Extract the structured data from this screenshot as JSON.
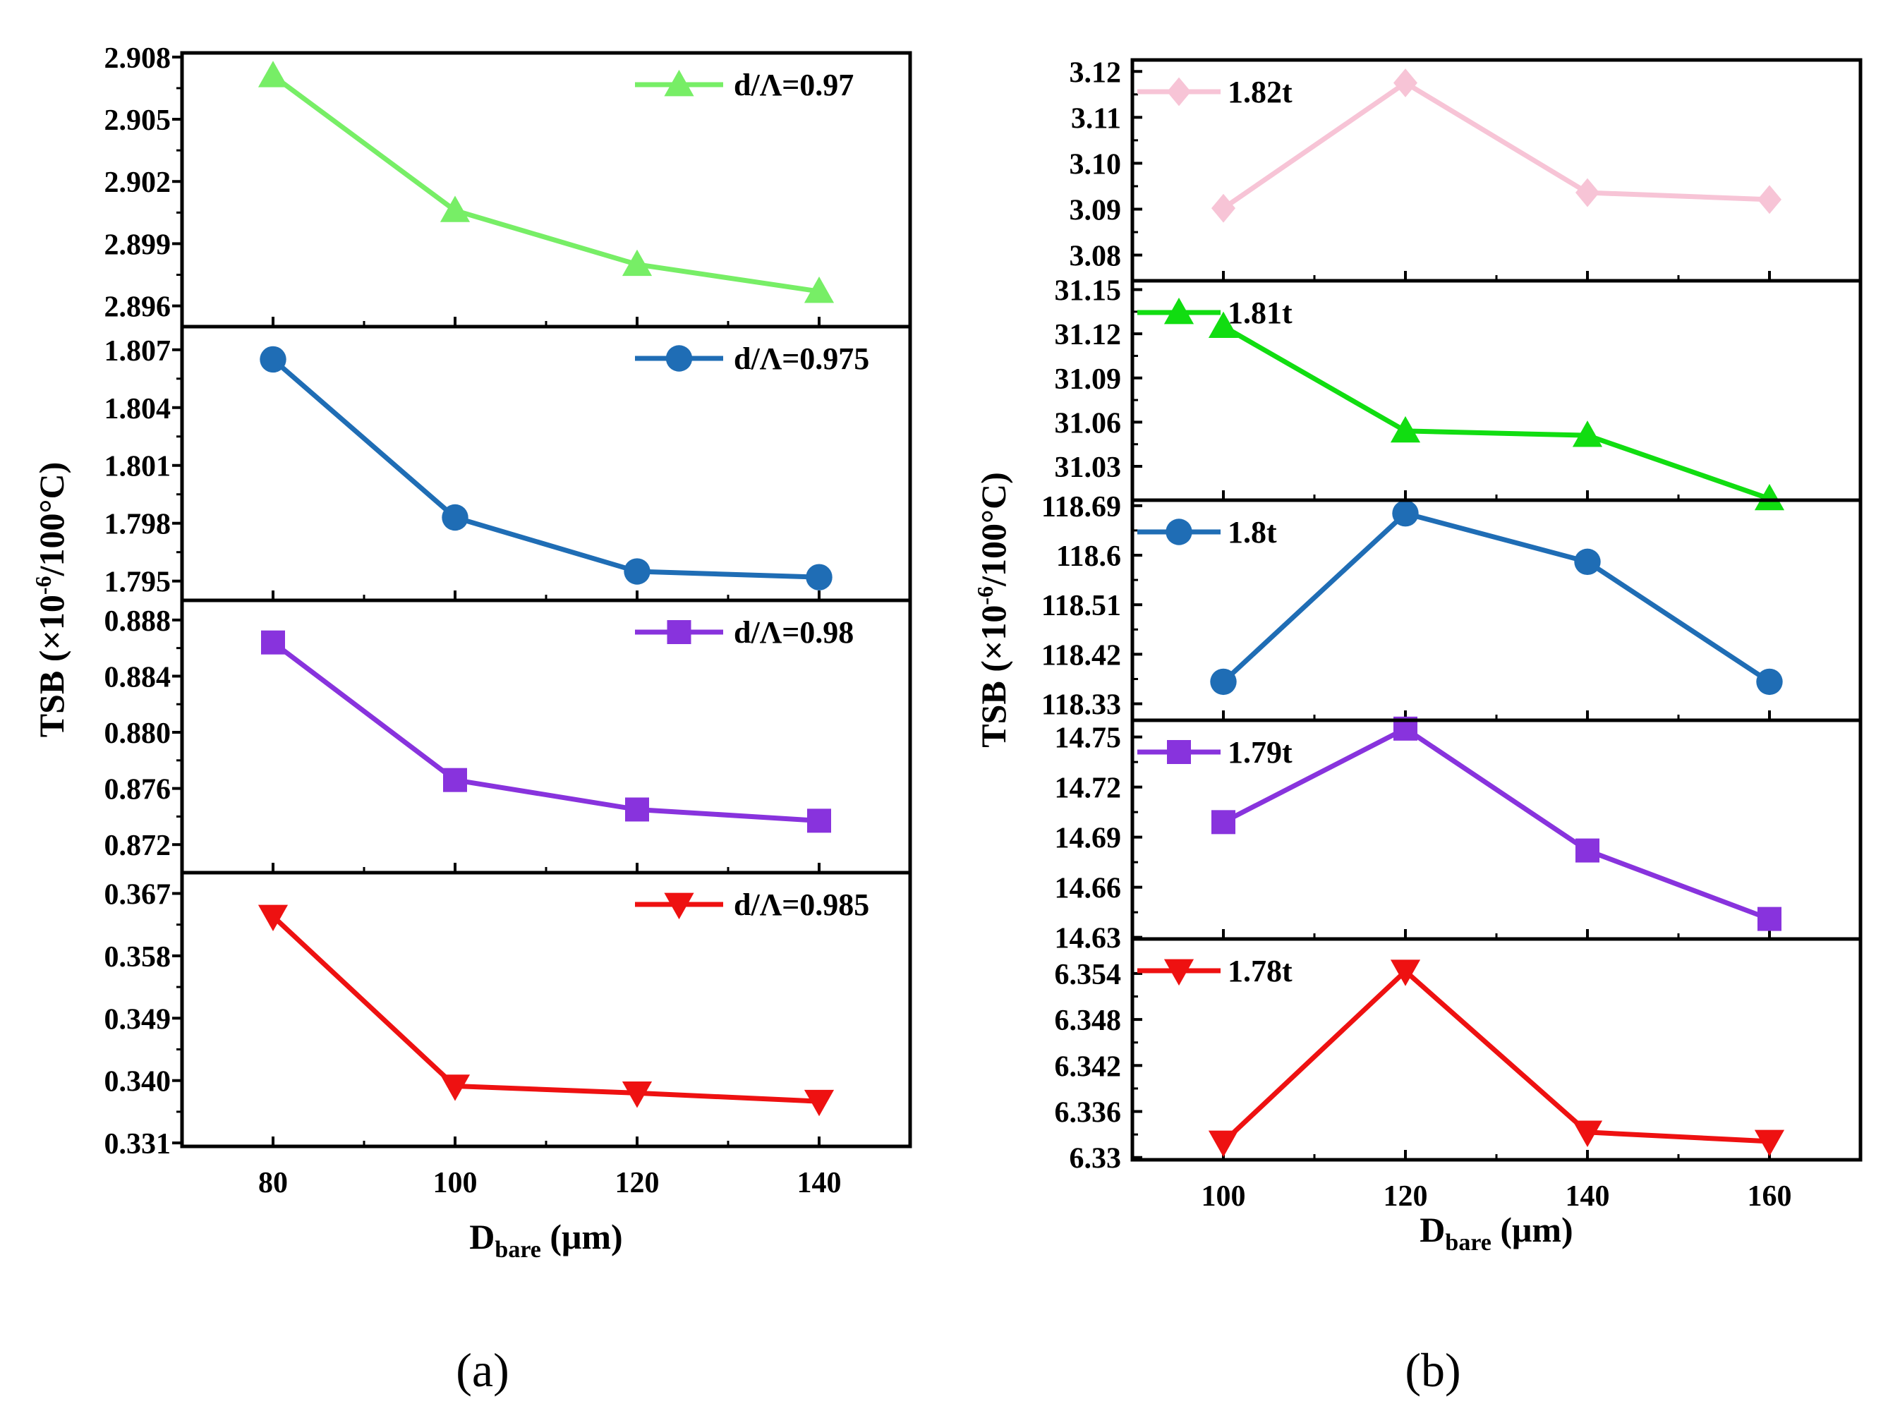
{
  "chart_data": [
    {
      "id": "a",
      "type": "line",
      "caption": "(a)",
      "xlabel": "D",
      "xlabel_sub": "bare",
      "xlabel_unit": " (μm)",
      "ylabel": "TSB (×10",
      "ylabel_sup": "-6",
      "ylabel_rest": "/100°C)",
      "x_ticks": [
        "80",
        "100",
        "120",
        "140"
      ],
      "x_values": [
        80,
        100,
        120,
        140
      ],
      "xlim": [
        70,
        150
      ],
      "panels": [
        {
          "name": "d/Λ=0.97",
          "color": "#77ee66",
          "marker": "triangle-up",
          "ylim": [
            2.895,
            2.9082
          ],
          "ticks": [
            "2.908",
            "2.905",
            "2.902",
            "2.899",
            "2.896"
          ],
          "tick_values": [
            2.908,
            2.905,
            2.902,
            2.899,
            2.896
          ],
          "x": [
            80,
            100,
            120,
            140
          ],
          "y": [
            2.9071,
            2.9006,
            2.898,
            2.8967
          ]
        },
        {
          "name": "d/Λ=0.975",
          "color": "#1f6db5",
          "marker": "circle",
          "ylim": [
            1.794,
            1.8082
          ],
          "ticks": [
            "1.807",
            "1.804",
            "1.801",
            "1.798",
            "1.795"
          ],
          "tick_values": [
            1.807,
            1.804,
            1.801,
            1.798,
            1.795
          ],
          "x": [
            80,
            100,
            120,
            140
          ],
          "y": [
            1.8065,
            1.7983,
            1.7955,
            1.7952
          ]
        },
        {
          "name": "d/Λ=0.98",
          "color": "#8833dd",
          "marker": "square",
          "ylim": [
            0.87,
            0.8894
          ],
          "ticks": [
            "0.888",
            "0.884",
            "0.880",
            "0.876",
            "0.872"
          ],
          "tick_values": [
            0.888,
            0.884,
            0.88,
            0.876,
            0.872
          ],
          "x": [
            80,
            100,
            120,
            140
          ],
          "y": [
            0.8864,
            0.8766,
            0.8745,
            0.8737
          ]
        },
        {
          "name": "d/Λ=0.985",
          "color": "#ee1111",
          "marker": "triangle-down",
          "ylim": [
            0.3305,
            0.37
          ],
          "ticks": [
            "0.367",
            "0.358",
            "0.349",
            "0.340",
            "0.331"
          ],
          "tick_values": [
            0.367,
            0.358,
            0.349,
            0.34,
            0.331
          ],
          "x": [
            80,
            100,
            120,
            140
          ],
          "y": [
            0.3637,
            0.3392,
            0.3382,
            0.337
          ]
        }
      ]
    },
    {
      "id": "b",
      "type": "line",
      "caption": "(b)",
      "xlabel": "D",
      "xlabel_sub": "bare",
      "xlabel_unit": " (μm)",
      "ylabel": "TSB (×10",
      "ylabel_sup": "-6",
      "ylabel_rest": "/100°C)",
      "x_ticks": [
        "100",
        "120",
        "140",
        "160"
      ],
      "x_values": [
        100,
        120,
        140,
        160
      ],
      "xlim": [
        90,
        170
      ],
      "panels": [
        {
          "name": "1.82t",
          "color": "#f7c4d6",
          "marker": "diamond",
          "ylim": [
            3.0744,
            3.1225
          ],
          "ticks": [
            "3.12",
            "3.11",
            "3.10",
            "3.09",
            "3.08"
          ],
          "tick_values": [
            3.12,
            3.11,
            3.1,
            3.09,
            3.08
          ],
          "x": [
            100,
            120,
            140,
            160
          ],
          "y": [
            3.0902,
            3.1175,
            3.0936,
            3.0921
          ]
        },
        {
          "name": "1.81t",
          "color": "#11dd11",
          "marker": "triangle-up",
          "ylim": [
            31.007,
            31.156
          ],
          "ticks": [
            "31.15",
            "31.12",
            "31.09",
            "31.06",
            "31.03"
          ],
          "tick_values": [
            31.15,
            31.12,
            31.09,
            31.06,
            31.03
          ],
          "x": [
            100,
            120,
            140,
            160
          ],
          "y": [
            31.125,
            31.054,
            31.051,
            31.008
          ]
        },
        {
          "name": "1.8t",
          "color": "#1f6db5",
          "marker": "circle",
          "ylim": [
            118.3,
            118.7
          ],
          "ticks": [
            "118.69",
            "118.6",
            "118.51",
            "118.42",
            "118.33"
          ],
          "tick_values": [
            118.69,
            118.6,
            118.51,
            118.42,
            118.33
          ],
          "x": [
            100,
            120,
            140,
            160
          ],
          "y": [
            118.37,
            118.676,
            118.588,
            118.37
          ]
        },
        {
          "name": "1.79t",
          "color": "#8833dd",
          "marker": "square",
          "ylim": [
            14.629,
            14.76
          ],
          "ticks": [
            "14.75",
            "14.72",
            "14.69",
            "14.66",
            "14.63"
          ],
          "tick_values": [
            14.75,
            14.72,
            14.69,
            14.66,
            14.63
          ],
          "x": [
            100,
            120,
            140,
            160
          ],
          "y": [
            14.699,
            14.755,
            14.682,
            14.641
          ]
        },
        {
          "name": "1.78t",
          "color": "#ee1111",
          "marker": "triangle-down",
          "ylim": [
            6.3297,
            6.3585
          ],
          "ticks": [
            "6.354",
            "6.348",
            "6.342",
            "6.336",
            "6.33"
          ],
          "tick_values": [
            6.354,
            6.348,
            6.342,
            6.336,
            6.33
          ],
          "x": [
            100,
            120,
            140,
            160
          ],
          "y": [
            6.332,
            6.3543,
            6.3333,
            6.3321
          ]
        }
      ]
    }
  ]
}
